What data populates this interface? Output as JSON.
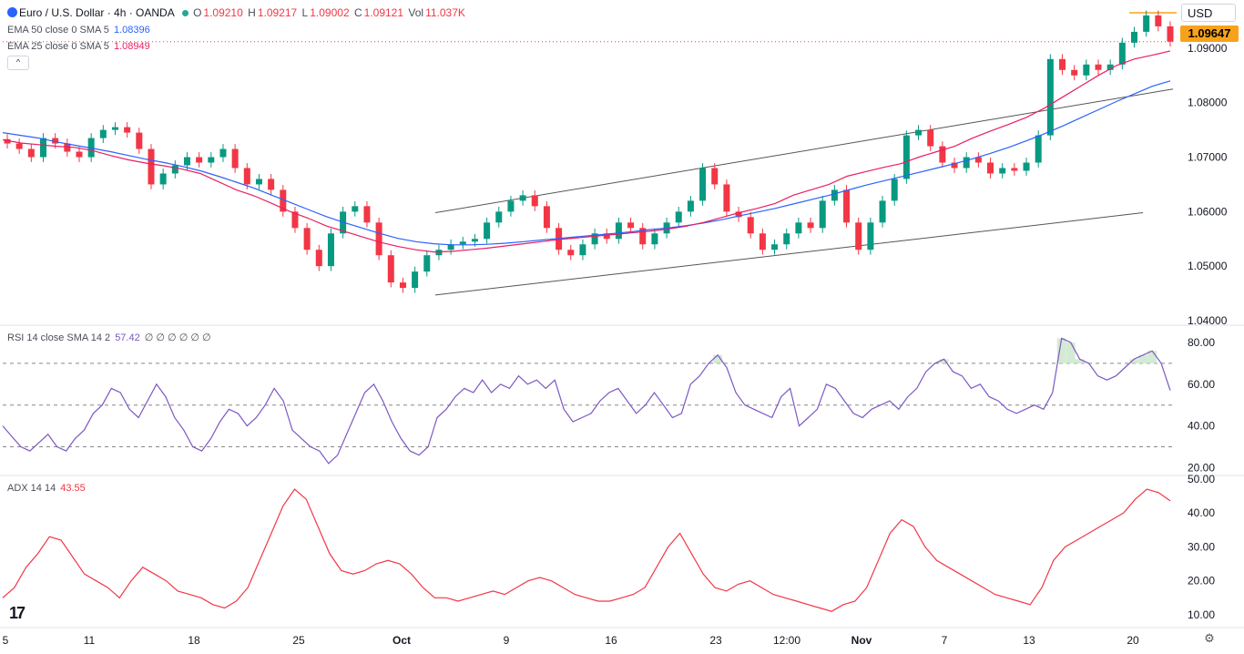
{
  "header": {
    "symbol_title": "Euro / U.S. Dollar · 4h · OANDA",
    "ohlc": [
      {
        "label": "O",
        "value": "1.09210"
      },
      {
        "label": "H",
        "value": "1.09217"
      },
      {
        "label": "L",
        "value": "1.09002"
      },
      {
        "label": "C",
        "value": "1.09121"
      },
      {
        "label": "Vol",
        "value": "11.037K"
      }
    ],
    "currency": "USD",
    "collapse_glyph": "^"
  },
  "indicators": {
    "ema50": {
      "label": "EMA 50 close 0 SMA 5",
      "value": "1.08396",
      "color": "#2962ff"
    },
    "ema25": {
      "label": "EMA 25 close 0 SMA 5",
      "value": "1.08949",
      "color": "#e91e63"
    },
    "rsi": {
      "label": "RSI 14 close SMA 14 2",
      "value": "57.42",
      "extra": "∅ ∅ ∅ ∅ ∅ ∅",
      "color": "#7e57c2"
    },
    "adx": {
      "label": "ADX 14 14",
      "value": "43.55",
      "color": "#f23645"
    }
  },
  "last_price_tag": "1.09647",
  "brand_mark": "17",
  "colors": {
    "up": "#089981",
    "down": "#f23645",
    "ema50": "#2962ff",
    "ema25": "#e91e63",
    "rsi": "#7e57c2",
    "adx": "#f23645",
    "price_tag": "#f7a21b"
  },
  "chart_data": [
    {
      "type": "candlestick",
      "y_ticks": [
        "1.04000",
        "1.05000",
        "1.06000",
        "1.07000",
        "1.08000",
        "1.09000"
      ],
      "ylim": [
        1.04,
        1.0975
      ],
      "x_ticks": [
        "5",
        "11",
        "18",
        "25",
        "Oct",
        "9",
        "16",
        "23",
        "12:00",
        "Nov",
        "7",
        "13",
        "20"
      ],
      "close_series": [
        1.0725,
        1.0715,
        1.07,
        1.0735,
        1.0725,
        1.071,
        1.07,
        1.0735,
        1.075,
        1.0755,
        1.0745,
        1.0715,
        1.065,
        1.067,
        1.0685,
        1.07,
        1.069,
        1.07,
        1.0715,
        1.068,
        1.065,
        1.066,
        1.064,
        1.06,
        1.057,
        1.053,
        1.05,
        1.056,
        1.06,
        1.061,
        1.058,
        1.052,
        1.047,
        1.046,
        1.049,
        1.052,
        1.053,
        1.054,
        1.0545,
        1.055,
        1.058,
        1.06,
        1.062,
        1.063,
        1.061,
        1.057,
        1.053,
        1.052,
        1.054,
        1.056,
        1.055,
        1.058,
        1.057,
        1.054,
        1.056,
        1.058,
        1.06,
        1.062,
        1.068,
        1.065,
        1.06,
        1.059,
        1.056,
        1.053,
        1.054,
        1.056,
        1.058,
        1.057,
        1.062,
        1.064,
        1.058,
        1.053,
        1.058,
        1.062,
        1.066,
        1.074,
        1.075,
        1.072,
        1.069,
        1.068,
        1.07,
        1.069,
        1.067,
        1.068,
        1.0675,
        1.069,
        1.074,
        1.088,
        1.086,
        1.085,
        1.087,
        1.086,
        1.087,
        1.091,
        1.093,
        1.096,
        1.094,
        1.0912
      ],
      "ema25_series": [
        1.0732,
        1.0726,
        1.0723,
        1.072,
        1.0718,
        1.0712,
        1.0703,
        1.0695,
        1.0689,
        1.0684,
        1.0678,
        1.067,
        1.0655,
        1.064,
        1.0629,
        1.0615,
        1.06,
        1.0588,
        1.0574,
        1.0564,
        1.0554,
        1.0544,
        1.0536,
        1.053,
        1.0526,
        1.0527,
        1.053,
        1.0533,
        1.0537,
        1.0541,
        1.0545,
        1.0549,
        1.0552,
        1.0555,
        1.0558,
        1.0561,
        1.0564,
        1.0568,
        1.0573,
        1.058,
        1.0589,
        1.0598,
        1.0606,
        1.0615,
        1.063,
        1.064,
        1.065,
        1.0665,
        1.0673,
        1.0681,
        1.0688,
        1.07,
        1.071,
        1.072,
        1.0735,
        1.0748,
        1.076,
        1.0773,
        1.079,
        1.081,
        1.083,
        1.085,
        1.0868,
        1.088,
        1.0887,
        1.0895
      ],
      "ema50_series": [
        1.0745,
        1.074,
        1.0735,
        1.0728,
        1.0722,
        1.0716,
        1.071,
        1.0703,
        1.0696,
        1.069,
        1.0683,
        1.0675,
        1.0665,
        1.0654,
        1.0643,
        1.063,
        1.0617,
        1.0604,
        1.0591,
        1.058,
        1.057,
        1.056,
        1.0551,
        1.0545,
        1.0541,
        1.0539,
        1.0539,
        1.054,
        1.0542,
        1.0545,
        1.0548,
        1.0551,
        1.0554,
        1.0557,
        1.056,
        1.0563,
        1.0567,
        1.057,
        1.0574,
        1.0579,
        1.0585,
        1.0592,
        1.0599,
        1.0606,
        1.0614,
        1.0622,
        1.063,
        1.0639,
        1.0648,
        1.0656,
        1.0664,
        1.0672,
        1.068,
        1.0688,
        1.0697,
        1.0707,
        1.0718,
        1.073,
        1.0743,
        1.0757,
        1.0772,
        1.0787,
        1.0802,
        1.0816,
        1.083,
        1.084
      ],
      "channel_upper": [
        [
          1.0598,
          1.0825
        ]
      ],
      "channel_lower": [
        [
          1.0447,
          1.0598
        ]
      ],
      "horizontal_line": 1.0912,
      "high_marker": 1.0965
    },
    {
      "type": "line",
      "name": "RSI",
      "y_ticks": [
        "20.00",
        "40.00",
        "60.00",
        "80.00"
      ],
      "ylim": [
        18,
        87
      ],
      "bands": [
        30,
        50,
        70
      ],
      "values": [
        40,
        35,
        30,
        28,
        32,
        36,
        30,
        28,
        34,
        38,
        46,
        50,
        58,
        56,
        48,
        44,
        52,
        60,
        54,
        44,
        38,
        30,
        28,
        34,
        42,
        48,
        46,
        40,
        44,
        50,
        58,
        52,
        38,
        34,
        30,
        28,
        22,
        26,
        36,
        46,
        56,
        60,
        52,
        42,
        34,
        28,
        26,
        30,
        44,
        48,
        54,
        58,
        56,
        62,
        56,
        60,
        58,
        64,
        60,
        62,
        58,
        62,
        48,
        42,
        44,
        46,
        52,
        56,
        58,
        52,
        46,
        50,
        56,
        50,
        44,
        46,
        60,
        64,
        70,
        74,
        68,
        56,
        50,
        48,
        46,
        44,
        54,
        58,
        40,
        44,
        48,
        60,
        58,
        52,
        46,
        44,
        48,
        50,
        52,
        48,
        54,
        58,
        66,
        70,
        72,
        66,
        64,
        58,
        60,
        54,
        52,
        48,
        46,
        48,
        50,
        48,
        56,
        82,
        80,
        72,
        70,
        64,
        62,
        64,
        68,
        72,
        74,
        76,
        70,
        57
      ]
    },
    {
      "type": "line",
      "name": "ADX",
      "y_ticks": [
        "10.00",
        "20.00",
        "30.00",
        "40.00",
        "50.00"
      ],
      "ylim": [
        6.5,
        50.5
      ],
      "values": [
        15,
        18,
        24,
        28,
        33,
        32,
        27,
        22,
        20,
        18,
        15,
        20,
        24,
        22,
        20,
        17,
        16,
        15,
        13,
        12,
        14,
        18,
        26,
        34,
        42,
        47,
        44,
        36,
        28,
        23,
        22,
        23,
        25,
        26,
        25,
        22,
        18,
        15,
        15,
        14,
        15,
        16,
        17,
        16,
        18,
        20,
        21,
        20,
        18,
        16,
        15,
        14,
        14,
        15,
        16,
        18,
        24,
        30,
        34,
        28,
        22,
        18,
        17,
        19,
        20,
        18,
        16,
        15,
        14,
        13,
        12,
        11,
        13,
        14,
        18,
        26,
        34,
        38,
        36,
        30,
        26,
        24,
        22,
        20,
        18,
        16,
        15,
        14,
        13,
        18,
        26,
        30,
        32,
        34,
        36,
        38,
        40,
        44,
        47,
        46,
        43.55
      ]
    }
  ]
}
